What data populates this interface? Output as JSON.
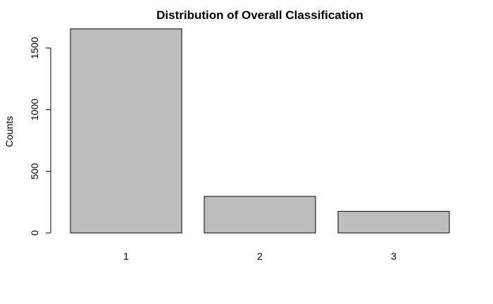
{
  "chart_data": {
    "type": "bar",
    "title": "Distribution of Overall Classification",
    "xlabel": "",
    "ylabel": "Counts",
    "categories": [
      "1",
      "2",
      "3"
    ],
    "values": [
      1655,
      296,
      175
    ],
    "ylim": [
      0,
      1655
    ],
    "yticks": [
      0,
      500,
      1000,
      1500
    ],
    "ytick_labels": [
      "0",
      "500",
      "1000",
      "1500"
    ],
    "grid": false,
    "legend": "none",
    "bar_fill": "#bebebe",
    "bar_stroke": "#000000"
  }
}
